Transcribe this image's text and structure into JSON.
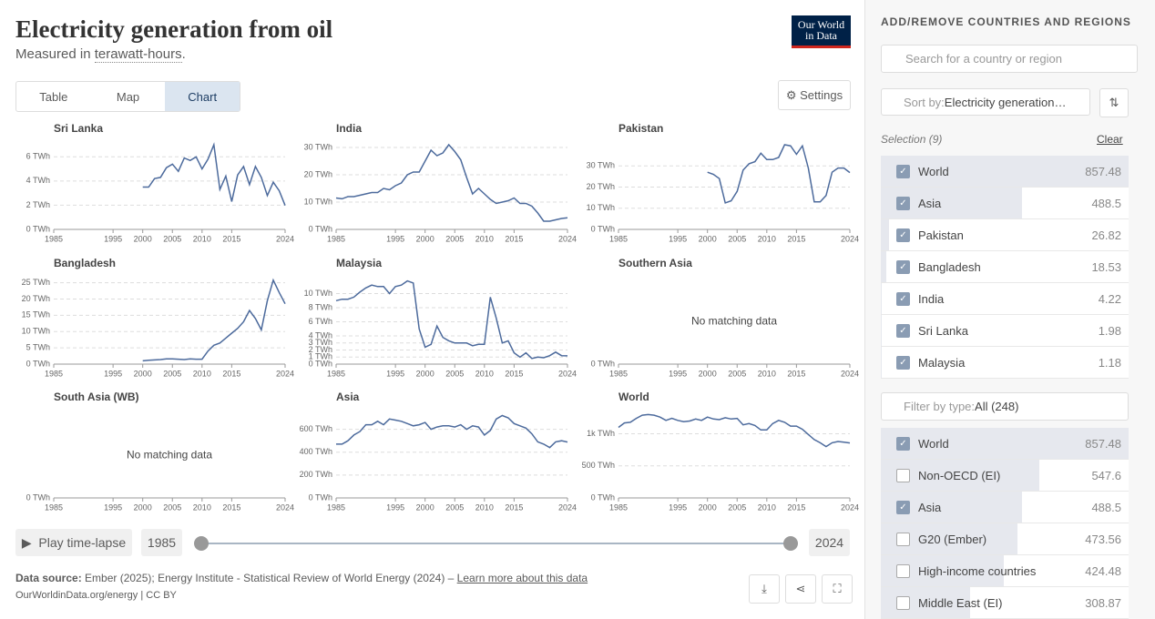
{
  "header": {
    "title": "Electricity generation from oil",
    "subtitle_prefix": "Measured in ",
    "subtitle_unit": "terawatt-hours",
    "subtitle_suffix": ".",
    "logo_line1": "Our World",
    "logo_line2": "in Data"
  },
  "tabs": [
    "Table",
    "Map",
    "Chart"
  ],
  "active_tab": 2,
  "settings": "Settings",
  "chart_data": [
    {
      "type": "line",
      "title": "Sri Lanka",
      "color": "#4c6a9c",
      "grid": true,
      "xlim": [
        1985,
        2024
      ],
      "xticks": [
        1985,
        1995,
        2000,
        2005,
        2010,
        2015,
        2024
      ],
      "ylim": [
        0,
        7
      ],
      "yticks": [
        {
          "value": 0,
          "label": "0 TWh"
        },
        {
          "value": 2,
          "label": "2 TWh"
        },
        {
          "value": 4,
          "label": "4 TWh"
        },
        {
          "value": 6,
          "label": "6 TWh"
        }
      ],
      "x": [
        2000,
        2001,
        2002,
        2003,
        2004,
        2005,
        2006,
        2007,
        2008,
        2009,
        2010,
        2011,
        2012,
        2013,
        2014,
        2015,
        2016,
        2017,
        2018,
        2019,
        2020,
        2021,
        2022,
        2023,
        2024
      ],
      "values": [
        3.5,
        3.5,
        4.2,
        4.3,
        5.1,
        5.4,
        4.8,
        5.9,
        5.7,
        6.0,
        5.0,
        5.8,
        7.0,
        3.3,
        4.4,
        2.3,
        4.5,
        5.2,
        3.7,
        5.2,
        4.3,
        2.8,
        3.9,
        3.2,
        1.98
      ]
    },
    {
      "type": "line",
      "title": "India",
      "color": "#4c6a9c",
      "grid": true,
      "xlim": [
        1985,
        2024
      ],
      "xticks": [
        1985,
        1995,
        2000,
        2005,
        2010,
        2015,
        2024
      ],
      "ylim": [
        0,
        31
      ],
      "yticks": [
        {
          "value": 0,
          "label": "0 TWh"
        },
        {
          "value": 10,
          "label": "10 TWh"
        },
        {
          "value": 20,
          "label": "20 TWh"
        },
        {
          "value": 30,
          "label": "30 TWh"
        }
      ],
      "x": [
        1985,
        1986,
        1987,
        1988,
        1989,
        1990,
        1991,
        1992,
        1993,
        1994,
        1995,
        1996,
        1997,
        1998,
        1999,
        2000,
        2001,
        2002,
        2003,
        2004,
        2005,
        2006,
        2007,
        2008,
        2009,
        2010,
        2011,
        2012,
        2013,
        2014,
        2015,
        2016,
        2017,
        2018,
        2019,
        2020,
        2021,
        2022,
        2023,
        2024
      ],
      "values": [
        11.5,
        11.2,
        12,
        12,
        12.5,
        13,
        13.5,
        13.5,
        15,
        14.5,
        16,
        17,
        20,
        21,
        21,
        25,
        29,
        27,
        28,
        31,
        28.5,
        25.5,
        19,
        13,
        15,
        13,
        11,
        9.5,
        10,
        10.5,
        11.5,
        9.5,
        9.5,
        8.5,
        6,
        3,
        3,
        3.5,
        4,
        4.22
      ]
    },
    {
      "type": "line",
      "title": "Pakistan",
      "color": "#4c6a9c",
      "grid": true,
      "xlim": [
        1985,
        2024
      ],
      "xticks": [
        1985,
        1995,
        2000,
        2005,
        2010,
        2015,
        2024
      ],
      "ylim": [
        0,
        40
      ],
      "yticks": [
        {
          "value": 0,
          "label": "0 TWh"
        },
        {
          "value": 10,
          "label": "10 TWh"
        },
        {
          "value": 20,
          "label": "20 TWh"
        },
        {
          "value": 30,
          "label": "30 TWh"
        }
      ],
      "x": [
        2000,
        2001,
        2002,
        2003,
        2004,
        2005,
        2006,
        2007,
        2008,
        2009,
        2010,
        2011,
        2012,
        2013,
        2014,
        2015,
        2016,
        2017,
        2018,
        2019,
        2020,
        2021,
        2022,
        2023,
        2024
      ],
      "values": [
        27,
        26,
        24,
        12.5,
        13.5,
        18,
        28,
        31,
        32,
        36,
        33,
        33,
        34,
        40,
        39.5,
        35.5,
        39.5,
        29,
        13,
        13,
        16,
        27,
        29,
        29,
        26.82
      ]
    },
    {
      "type": "line",
      "title": "Bangladesh",
      "color": "#4c6a9c",
      "grid": true,
      "xlim": [
        1985,
        2024
      ],
      "xticks": [
        1985,
        1995,
        2000,
        2005,
        2010,
        2015,
        2024
      ],
      "ylim": [
        0,
        26
      ],
      "yticks": [
        {
          "value": 0,
          "label": "0 TWh"
        },
        {
          "value": 5,
          "label": "5 TWh"
        },
        {
          "value": 10,
          "label": "10 TWh"
        },
        {
          "value": 15,
          "label": "15 TWh"
        },
        {
          "value": 20,
          "label": "20 TWh"
        },
        {
          "value": 25,
          "label": "25 TWh"
        }
      ],
      "x": [
        2000,
        2001,
        2002,
        2003,
        2004,
        2005,
        2006,
        2007,
        2008,
        2009,
        2010,
        2011,
        2012,
        2013,
        2014,
        2015,
        2016,
        2017,
        2018,
        2019,
        2020,
        2021,
        2022,
        2023,
        2024
      ],
      "values": [
        1,
        1.2,
        1.3,
        1.4,
        1.6,
        1.6,
        1.5,
        1.4,
        1.6,
        1.5,
        1.5,
        4,
        5.8,
        6.5,
        8,
        9.5,
        11,
        13,
        16.5,
        14,
        10.5,
        19.5,
        25.8,
        22,
        18.53
      ]
    },
    {
      "type": "line",
      "title": "Malaysia",
      "color": "#4c6a9c",
      "grid": true,
      "xlim": [
        1985,
        2024
      ],
      "xticks": [
        1985,
        1995,
        2000,
        2005,
        2010,
        2015,
        2024
      ],
      "ylim": [
        0,
        12
      ],
      "yticks": [
        {
          "value": 0,
          "label": "0 TWh"
        },
        {
          "value": 1,
          "label": "1 TWh"
        },
        {
          "value": 2,
          "label": "2 TWh"
        },
        {
          "value": 3,
          "label": "3 TWh"
        },
        {
          "value": 4,
          "label": "4 TWh"
        },
        {
          "value": 6,
          "label": "6 TWh"
        },
        {
          "value": 8,
          "label": "8 TWh"
        },
        {
          "value": 10,
          "label": "10 TWh"
        }
      ],
      "x": [
        1985,
        1986,
        1987,
        1988,
        1989,
        1990,
        1991,
        1992,
        1993,
        1994,
        1995,
        1996,
        1997,
        1998,
        1999,
        2000,
        2001,
        2002,
        2003,
        2004,
        2005,
        2006,
        2007,
        2008,
        2009,
        2010,
        2011,
        2012,
        2013,
        2014,
        2015,
        2016,
        2017,
        2018,
        2019,
        2020,
        2021,
        2022,
        2023,
        2024
      ],
      "values": [
        9,
        9.2,
        9.2,
        9.5,
        10.2,
        10.8,
        11.2,
        11,
        11,
        10,
        11,
        11.2,
        11.8,
        11.5,
        5,
        2.4,
        2.8,
        5.4,
        3.8,
        3.3,
        3.0,
        3.0,
        3.0,
        2.6,
        2.8,
        2.8,
        9.5,
        6.5,
        3.0,
        3.3,
        1.6,
        1.0,
        1.6,
        0.8,
        1.0,
        0.9,
        1.2,
        1.7,
        1.2,
        1.18
      ]
    },
    {
      "type": "line",
      "title": "Southern Asia",
      "annotation": "No matching data",
      "xlim": [
        1985,
        2024
      ],
      "xticks": [
        1985,
        1995,
        2000,
        2005,
        2010,
        2015,
        2024
      ],
      "yticks": [
        {
          "value": 0,
          "label": "0 TWh"
        }
      ]
    },
    {
      "type": "line",
      "title": "South Asia (WB)",
      "annotation": "No matching data",
      "xlim": [
        1985,
        2024
      ],
      "xticks": [
        1985,
        1995,
        2000,
        2005,
        2010,
        2015,
        2024
      ],
      "yticks": [
        {
          "value": 0,
          "label": "0 TWh"
        }
      ]
    },
    {
      "type": "line",
      "title": "Asia",
      "color": "#4c6a9c",
      "grid": true,
      "xlim": [
        1985,
        2024
      ],
      "xticks": [
        1985,
        1995,
        2000,
        2005,
        2010,
        2015,
        2024
      ],
      "ylim": [
        0,
        740
      ],
      "yticks": [
        {
          "value": 0,
          "label": "0 TWh"
        },
        {
          "value": 200,
          "label": "200 TWh"
        },
        {
          "value": 400,
          "label": "400 TWh"
        },
        {
          "value": 600,
          "label": "600 TWh"
        }
      ],
      "x": [
        1985,
        1986,
        1987,
        1988,
        1989,
        1990,
        1991,
        1992,
        1993,
        1994,
        1995,
        1996,
        1997,
        1998,
        1999,
        2000,
        2001,
        2002,
        2003,
        2004,
        2005,
        2006,
        2007,
        2008,
        2009,
        2010,
        2011,
        2012,
        2013,
        2014,
        2015,
        2016,
        2017,
        2018,
        2019,
        2020,
        2021,
        2022,
        2023,
        2024
      ],
      "values": [
        470,
        470,
        500,
        550,
        580,
        640,
        640,
        670,
        640,
        690,
        680,
        670,
        650,
        630,
        640,
        660,
        600,
        620,
        630,
        630,
        620,
        640,
        600,
        630,
        620,
        550,
        590,
        690,
        720,
        700,
        650,
        630,
        610,
        560,
        490,
        470,
        440,
        490,
        500,
        488.5
      ]
    },
    {
      "type": "line",
      "title": "World",
      "color": "#4c6a9c",
      "grid": true,
      "xlim": [
        1985,
        2024
      ],
      "xticks": [
        1985,
        1995,
        2000,
        2005,
        2010,
        2015,
        2024
      ],
      "ylim": [
        0,
        1320
      ],
      "yticks": [
        {
          "value": 0,
          "label": "0 TWh"
        },
        {
          "value": 500,
          "label": "500 TWh"
        },
        {
          "value": 1000,
          "label": "1k TWh"
        }
      ],
      "x": [
        1985,
        1986,
        1987,
        1988,
        1989,
        1990,
        1991,
        1992,
        1993,
        1994,
        1995,
        1996,
        1997,
        1998,
        1999,
        2000,
        2001,
        2002,
        2003,
        2004,
        2005,
        2006,
        2007,
        2008,
        2009,
        2010,
        2011,
        2012,
        2013,
        2014,
        2015,
        2016,
        2017,
        2018,
        2019,
        2020,
        2021,
        2022,
        2023,
        2024
      ],
      "values": [
        1100,
        1170,
        1180,
        1240,
        1290,
        1300,
        1290,
        1260,
        1210,
        1240,
        1210,
        1190,
        1200,
        1230,
        1210,
        1260,
        1230,
        1220,
        1250,
        1230,
        1240,
        1140,
        1160,
        1130,
        1060,
        1060,
        1160,
        1210,
        1180,
        1120,
        1120,
        1070,
        990,
        910,
        860,
        800,
        860,
        880,
        870,
        857.48
      ]
    }
  ],
  "timeline": {
    "play": "Play time-lapse",
    "start": "1985",
    "end": "2024"
  },
  "footer": {
    "source_label": "Data source:",
    "source": " Ember (2025); Energy Institute - Statistical Review of World Energy (2024) – ",
    "learn_more": "Learn more about this data",
    "credit": "OurWorldinData.org/energy | CC BY"
  },
  "sidebar": {
    "heading": "ADD/REMOVE COUNTRIES AND REGIONS",
    "search": "Search for a country or region",
    "sort_label": "Sort by: ",
    "sort_value": "Electricity generation…",
    "selection": "Selection (9)",
    "clear": "Clear",
    "selected": [
      {
        "name": "World",
        "value": 857.48,
        "checked": true
      },
      {
        "name": "Asia",
        "value": 488.5,
        "checked": true
      },
      {
        "name": "Pakistan",
        "value": 26.82,
        "checked": true
      },
      {
        "name": "Bangladesh",
        "value": 18.53,
        "checked": true
      },
      {
        "name": "India",
        "value": 4.22,
        "checked": true
      },
      {
        "name": "Sri Lanka",
        "value": 1.98,
        "checked": true
      },
      {
        "name": "Malaysia",
        "value": 1.18,
        "checked": true
      }
    ],
    "filter_label": "Filter by type: ",
    "filter_value": "All (248)",
    "all": [
      {
        "name": "World",
        "value": 857.48,
        "checked": true
      },
      {
        "name": "Non-OECD (EI)",
        "value": 547.6,
        "checked": false
      },
      {
        "name": "Asia",
        "value": 488.5,
        "checked": true
      },
      {
        "name": "G20 (Ember)",
        "value": 473.56,
        "checked": false
      },
      {
        "name": "High-income countries",
        "value": 424.48,
        "checked": false
      },
      {
        "name": "Middle East (EI)",
        "value": 308.87,
        "checked": false
      }
    ]
  }
}
